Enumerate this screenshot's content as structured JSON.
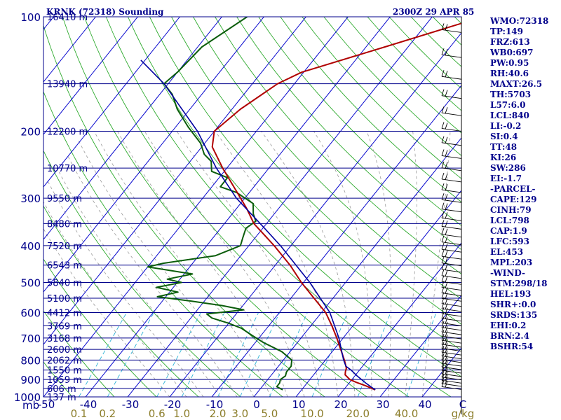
{
  "header": {
    "station": "KRNK (72318) Sounding",
    "time": "2300Z 29 APR 85"
  },
  "indices": [
    "WMO:72318",
    "TP:149",
    "FRZ:613",
    "WB0:697",
    "PW:0.95",
    "RH:40.6",
    "MAXT:26.5",
    "TH:5703",
    "L57:6.0",
    "LCL:840",
    "LI:-0.2",
    "SI:0.4",
    "TT:48",
    "KI:26",
    "SW:286",
    "EI:-1.7",
    "-PARCEL-",
    "CAPE:129",
    "CINH:79",
    "LCL:798",
    "CAP:1.9",
    "LFC:593",
    "EL:453",
    "MPL:203",
    "-WIND-",
    "STM:298/18",
    "HEL:193",
    "SHR+:0.0",
    "SRDS:135",
    "EHI:0.2",
    "BRN:2.4",
    "BSHR:54"
  ],
  "colors": {
    "isobar": "#00008b",
    "isotherm": "#0000cd",
    "dry_adiabat": "#2eaa2e",
    "moist_adiabat": "#9a9a9a",
    "mixing_ratio": "#2db3d6",
    "temperature": "#b00000",
    "dewpoint": "#0b5d0b",
    "parcel": "#0000a0",
    "wind_barb": "#000000",
    "mixing_label": "#8b7d2a"
  },
  "chart_data": {
    "type": "skew-t",
    "title": "KRNK (72318) Sounding",
    "y_unit": "mb",
    "y_scale": "log",
    "ylim": [
      1000,
      100
    ],
    "xlim": [
      -50,
      50
    ],
    "pressure_levels": [
      100,
      200,
      300,
      400,
      500,
      600,
      700,
      800,
      900,
      1000
    ],
    "height_labels": [
      {
        "p": 100,
        "text": "16410 m"
      },
      {
        "p": 150,
        "text": "13940 m"
      },
      {
        "p": 200,
        "text": "12200 m"
      },
      {
        "p": 250,
        "text": "10770 m"
      },
      {
        "p": 300,
        "text": "9550 m"
      },
      {
        "p": 350,
        "text": "8480 m"
      },
      {
        "p": 400,
        "text": "7520 m"
      },
      {
        "p": 450,
        "text": "6543 m"
      },
      {
        "p": 500,
        "text": "5840 m"
      },
      {
        "p": 550,
        "text": "5100 m"
      },
      {
        "p": 600,
        "text": "4412 m"
      },
      {
        "p": 650,
        "text": "3769 m"
      },
      {
        "p": 700,
        "text": "3168 m"
      },
      {
        "p": 750,
        "text": "2600 m"
      },
      {
        "p": 800,
        "text": "2062 m"
      },
      {
        "p": 850,
        "text": "1550 m"
      },
      {
        "p": 900,
        "text": "1059 m"
      },
      {
        "p": 950,
        "text": "606 m"
      },
      {
        "p": 1000,
        "text": "137 m"
      }
    ],
    "temperature_ticks": [
      "-50",
      "-40",
      "-30",
      "-20",
      "-10",
      "0",
      "10",
      "20",
      "30",
      "40",
      "C"
    ],
    "mixing_ratio_ticks": [
      "0.1",
      "0.2",
      "0.6",
      "1.0",
      "2.0",
      "3.0",
      "5.0",
      "10.0",
      "20.0",
      "40.0",
      "g/kg"
    ],
    "temperature_profile": [
      [
        958,
        27.5
      ],
      [
        935,
        24.5
      ],
      [
        915,
        21.5
      ],
      [
        900,
        19.5
      ],
      [
        875,
        17.5
      ],
      [
        860,
        17
      ],
      [
        840,
        16.5
      ],
      [
        800,
        14.5
      ],
      [
        700,
        8.5
      ],
      [
        650,
        5
      ],
      [
        600,
        1
      ],
      [
        550,
        -4.5
      ],
      [
        500,
        -10.5
      ],
      [
        450,
        -16.5
      ],
      [
        400,
        -24
      ],
      [
        350,
        -33
      ],
      [
        320,
        -37.5
      ],
      [
        300,
        -41
      ],
      [
        250,
        -51
      ],
      [
        220,
        -57.5
      ],
      [
        200,
        -60
      ],
      [
        175,
        -58
      ],
      [
        150,
        -54
      ],
      [
        140,
        -50.5
      ],
      [
        120,
        -35.5
      ],
      [
        100,
        -18
      ]
    ],
    "dewpoint_profile": [
      [
        958,
        5.5
      ],
      [
        940,
        3.5
      ],
      [
        920,
        3.5
      ],
      [
        900,
        3
      ],
      [
        880,
        3.5
      ],
      [
        860,
        3
      ],
      [
        830,
        3
      ],
      [
        800,
        2
      ],
      [
        760,
        -2
      ],
      [
        720,
        -8
      ],
      [
        690,
        -12
      ],
      [
        660,
        -16
      ],
      [
        640,
        -20
      ],
      [
        620,
        -25
      ],
      [
        605,
        -27
      ],
      [
        590,
        -19
      ],
      [
        575,
        -25
      ],
      [
        560,
        -33
      ],
      [
        545,
        -42
      ],
      [
        530,
        -38
      ],
      [
        515,
        -44
      ],
      [
        500,
        -39
      ],
      [
        490,
        -43
      ],
      [
        475,
        -38
      ],
      [
        465,
        -44
      ],
      [
        455,
        -50
      ],
      [
        445,
        -47
      ],
      [
        425,
        -36
      ],
      [
        400,
        -32
      ],
      [
        380,
        -33
      ],
      [
        360,
        -34
      ],
      [
        345,
        -33
      ],
      [
        330,
        -35
      ],
      [
        310,
        -37
      ],
      [
        290,
        -43
      ],
      [
        280,
        -48
      ],
      [
        265,
        -48
      ],
      [
        255,
        -53
      ],
      [
        240,
        -55
      ],
      [
        230,
        -58
      ],
      [
        215,
        -61
      ],
      [
        195,
        -67
      ],
      [
        175,
        -73
      ],
      [
        160,
        -77
      ],
      [
        150,
        -81
      ],
      [
        140,
        -80
      ],
      [
        120,
        -79
      ],
      [
        100,
        -74
      ]
    ],
    "parcel_profile": [
      [
        958,
        27.5
      ],
      [
        920,
        24
      ],
      [
        880,
        20.5
      ],
      [
        850,
        18
      ],
      [
        830,
        16
      ],
      [
        798,
        14.2
      ],
      [
        700,
        9
      ],
      [
        600,
        2
      ],
      [
        500,
        -8.5
      ],
      [
        400,
        -22.5
      ],
      [
        350,
        -31.5
      ],
      [
        300,
        -42
      ],
      [
        250,
        -52.5
      ],
      [
        200,
        -64
      ],
      [
        150,
        -81
      ],
      [
        130,
        -91
      ]
    ]
  }
}
